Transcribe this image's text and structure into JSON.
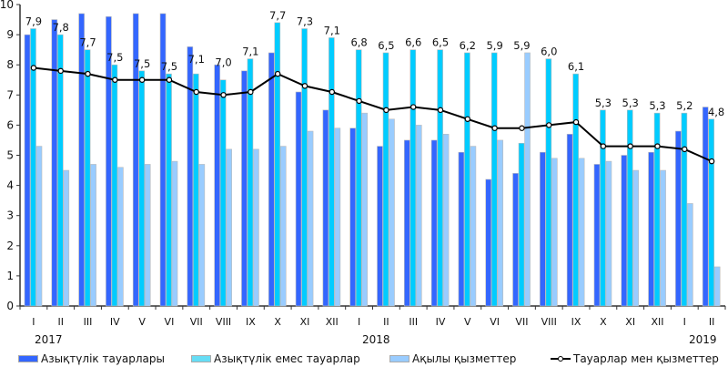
{
  "chart_data": {
    "type": "bar",
    "categories": [
      "I",
      "II",
      "III",
      "IV",
      "V",
      "VI",
      "VII",
      "VIII",
      "IX",
      "X",
      "XI",
      "XII",
      "I",
      "II",
      "III",
      "IV",
      "V",
      "VI",
      "VII",
      "VIII",
      "IX",
      "X",
      "XI",
      "XII",
      "I",
      "II"
    ],
    "years": [
      "2017",
      "2018",
      "2019"
    ],
    "ylim": [
      0,
      10
    ],
    "yticks": [
      0,
      1,
      2,
      3,
      4,
      5,
      6,
      7,
      8,
      9,
      10
    ],
    "grid": false,
    "legend_position": "bottom",
    "series": [
      {
        "name": "Азықтүлік тауарлары",
        "type": "bar",
        "color": "#3366ff",
        "values": [
          9.0,
          9.5,
          9.7,
          9.6,
          9.7,
          9.7,
          8.6,
          8.0,
          7.8,
          8.4,
          7.1,
          6.5,
          5.9,
          5.3,
          5.5,
          5.5,
          5.1,
          4.2,
          4.4,
          5.1,
          5.7,
          4.7,
          5.0,
          5.1,
          5.8,
          6.6
        ]
      },
      {
        "name": "Азықтүлік емес тауарлар",
        "type": "bar",
        "color": "#00ccff",
        "values": [
          9.2,
          9.0,
          8.5,
          8.0,
          7.8,
          7.7,
          7.7,
          7.5,
          8.2,
          9.4,
          9.2,
          8.9,
          8.5,
          8.4,
          8.5,
          8.5,
          8.4,
          8.4,
          5.4,
          8.2,
          7.7,
          6.5,
          6.5,
          6.4,
          6.4,
          6.2
        ]
      },
      {
        "name": "Ақылы қызметтер",
        "type": "bar",
        "color": "#99ccff",
        "values": [
          5.3,
          4.5,
          4.7,
          4.6,
          4.7,
          4.8,
          4.7,
          5.2,
          5.2,
          5.3,
          5.8,
          5.9,
          6.4,
          6.2,
          6.0,
          5.7,
          5.3,
          5.5,
          8.4,
          4.9,
          4.9,
          4.8,
          4.5,
          4.5,
          3.4,
          1.3
        ]
      },
      {
        "name": "Тауарлар мен қызметтер",
        "type": "line",
        "color": "#000000",
        "values": [
          7.9,
          7.8,
          7.7,
          7.5,
          7.5,
          7.5,
          7.1,
          7.0,
          7.1,
          7.7,
          7.3,
          7.1,
          6.8,
          6.5,
          6.6,
          6.5,
          6.2,
          5.9,
          5.9,
          6.0,
          6.1,
          5.3,
          5.3,
          5.3,
          5.2,
          4.8
        ],
        "labels": [
          "7,9",
          "7,8",
          "7,7",
          "7,5",
          "7,5",
          "7,5",
          "7,1",
          "7,0",
          "7,1",
          "7,7",
          "7,3",
          "7,1",
          "6,8",
          "6,5",
          "6,6",
          "6,5",
          "6,2",
          "5,9",
          "5,9",
          "6,0",
          "6,1",
          "5,3",
          "5,3",
          "5,3",
          "5,2",
          "4,8"
        ]
      }
    ]
  }
}
